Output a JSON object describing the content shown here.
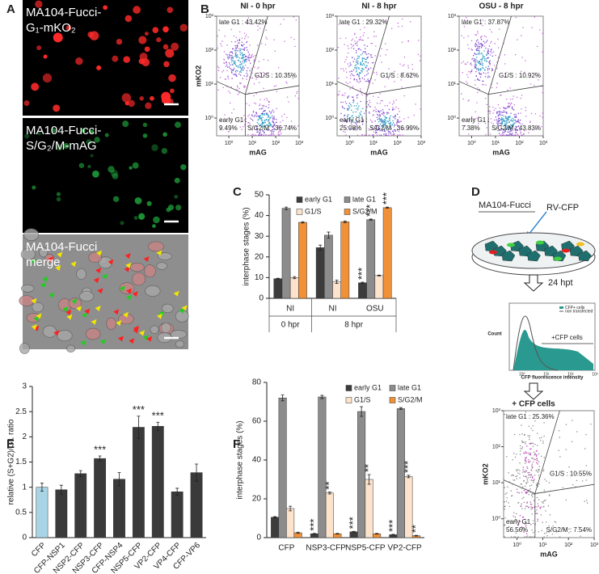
{
  "panel_letters": [
    "A",
    "B",
    "C",
    "D",
    "E",
    "F"
  ],
  "microscopy": [
    {
      "label": [
        "MA104-Fucci-",
        "G₁-mKO₂"
      ]
    },
    {
      "label": [
        "MA104-Fucci-",
        "S/G₂/M-mAG"
      ]
    },
    {
      "label": [
        "MA104-Fucci",
        "merge"
      ]
    }
  ],
  "flow_plots": [
    {
      "title": "NI - 0 hpr",
      "xlabel": "mAG",
      "ylabel": "mKO2",
      "log_scale": true,
      "xlim": [
        0.3,
        1000
      ],
      "ylim": [
        0.3,
        1000
      ],
      "xticks": [
        {
          "value": 1,
          "label": "10⁰"
        },
        {
          "value": 10,
          "label": "10¹"
        },
        {
          "value": 100,
          "label": "10²"
        },
        {
          "value": 1000,
          "label": "10³"
        }
      ],
      "yticks": [
        {
          "value": 1,
          "label": "10⁰"
        },
        {
          "value": 10,
          "label": "10¹"
        },
        {
          "value": 100,
          "label": "10²"
        },
        {
          "value": 1000,
          "label": "10³"
        }
      ],
      "gates": {
        "late_g1": "late G1 : 43.42%",
        "g1_s": "G1/S : 10.35%",
        "early_g1": [
          "early G1 :",
          "9.49%"
        ],
        "s_g2_m": "S/G2/M : 36.74%"
      }
    },
    {
      "title": "NI - 8 hpr",
      "xlabel": "mAG",
      "log_scale": true,
      "xlim": [
        0.3,
        1000
      ],
      "ylim": [
        0.3,
        1000
      ],
      "xticks": [
        {
          "value": 1,
          "label": "10⁰"
        },
        {
          "value": 10,
          "label": "10¹"
        },
        {
          "value": 100,
          "label": "10²"
        },
        {
          "value": 1000,
          "label": "10³"
        }
      ],
      "yticks": [
        {
          "value": 1,
          "label": "10⁰"
        },
        {
          "value": 10,
          "label": "10¹"
        },
        {
          "value": 100,
          "label": "10²"
        },
        {
          "value": 1000,
          "label": "10³"
        }
      ],
      "gates": {
        "late_g1": "late G1 : 29.32%",
        "g1_s": "G1/S : 8.62%",
        "early_g1": [
          "early G1 :",
          "25.08%"
        ],
        "s_g2_m": "S/G2/M : 36.99%"
      }
    },
    {
      "title": "OSU - 8 hpr",
      "xlabel": "mAG",
      "log_scale": true,
      "xlim": [
        0.3,
        1000
      ],
      "ylim": [
        0.3,
        1000
      ],
      "xticks": [
        {
          "value": 1,
          "label": "10⁰"
        },
        {
          "value": 10,
          "label": "10¹"
        },
        {
          "value": 100,
          "label": "10²"
        },
        {
          "value": 1000,
          "label": "10³"
        }
      ],
      "yticks": [
        {
          "value": 1,
          "label": "10⁰"
        },
        {
          "value": 10,
          "label": "10¹"
        },
        {
          "value": 100,
          "label": "10²"
        },
        {
          "value": 1000,
          "label": "10³"
        }
      ],
      "gates": {
        "late_g1": "late G1 : 37.87%",
        "g1_s": "G1/S : 10.92%",
        "early_g1": [
          "early G1 :",
          "7.38%"
        ],
        "s_g2_m": "S/G2/M : 43.83%"
      }
    }
  ],
  "diagram": {
    "cell_line": "MA104-Fucci",
    "virus": "RV-CFP",
    "time": "24 hpt",
    "histogram": {
      "ylabel": "Count",
      "xlabel": "CFP fluorescence intensity",
      "legend": [
        "CFP+ cells",
        "non transfected"
      ],
      "gate_label": "+CFP cells",
      "xticks": [
        {
          "value": 1,
          "label": "10⁰"
        },
        {
          "value": 10,
          "label": "10¹"
        },
        {
          "value": 100,
          "label": "10²"
        },
        {
          "value": 1000,
          "label": "10³"
        }
      ],
      "xlim": [
        0.3,
        1000
      ]
    },
    "sorted_label": "+ CFP cells",
    "flow_plot": {
      "xlabel": "mAG",
      "ylabel": "mKO2",
      "log_scale": true,
      "xlim": [
        0.3,
        1000
      ],
      "ylim": [
        0.3,
        1000
      ],
      "xticks": [
        {
          "value": 1,
          "label": "10⁰"
        },
        {
          "value": 10,
          "label": "10¹"
        },
        {
          "value": 100,
          "label": "10²"
        },
        {
          "value": 1000,
          "label": "10³"
        }
      ],
      "yticks": [
        {
          "value": 1,
          "label": "10⁰"
        },
        {
          "value": 10,
          "label": "10¹"
        },
        {
          "value": 100,
          "label": "10²"
        },
        {
          "value": 1000,
          "label": "10³"
        }
      ],
      "gates": {
        "late_g1": "late G1 : 25.36%",
        "g1_s": "G1/S : 10.55%",
        "early_g1": [
          "early G1 :",
          "56.56%"
        ],
        "s_g2_m": "S/G2/M : 7.54%"
      }
    }
  },
  "chart_data": [
    {
      "type": "bar",
      "ylabel": "interphase stages (%)",
      "categories": [
        "NI",
        "NI",
        "OSU"
      ],
      "group_labels": [
        "0 hpr",
        "8 hpr",
        null
      ],
      "ylim": [
        0,
        50
      ],
      "yticks": [
        0,
        10,
        20,
        30,
        40,
        50
      ],
      "series": [
        {
          "name": "early G1",
          "color": "#3c3c3c",
          "values": [
            9.5,
            24.5,
            7.5
          ],
          "errors": [
            0.2,
            1.2,
            0.3
          ],
          "significance": [
            null,
            null,
            "***"
          ]
        },
        {
          "name": "late G1",
          "color": "#8c8c8c",
          "values": [
            43.5,
            30.5,
            38
          ],
          "errors": [
            0.6,
            1.5,
            0.3
          ],
          "significance": [
            null,
            null,
            "***"
          ]
        },
        {
          "name": "G1/S",
          "color": "#fde3cc",
          "values": [
            10,
            8,
            11
          ],
          "errors": [
            0.5,
            0.8,
            0.2
          ],
          "significance": [
            null,
            null,
            null
          ]
        },
        {
          "name": "S/G2/M",
          "color": "#f0913a",
          "values": [
            36.7,
            37,
            43.8
          ],
          "errors": [
            0.3,
            0.4,
            0.3
          ],
          "significance": [
            null,
            null,
            "***"
          ]
        }
      ]
    },
    {
      "type": "bar",
      "ylabel": "relative (S+G2)/G1 ratio",
      "categories": [
        "CFP",
        "CFP-NSP1",
        "NSP2-CFP",
        "NSP3-CFP",
        "CFP-NSP4",
        "NSP5-CFP",
        "VP2-CFP",
        "VP4-CFP",
        "CFP-VP6"
      ],
      "values": [
        1.0,
        0.95,
        1.27,
        1.57,
        1.16,
        2.19,
        2.21,
        0.91,
        1.29
      ],
      "errors": [
        0.08,
        0.09,
        0.06,
        0.05,
        0.13,
        0.22,
        0.08,
        0.07,
        0.17
      ],
      "colors": [
        "#a9d4e6",
        "#3a3a3a",
        "#3a3a3a",
        "#3a3a3a",
        "#3a3a3a",
        "#3a3a3a",
        "#3a3a3a",
        "#3a3a3a",
        "#3a3a3a"
      ],
      "significance": [
        null,
        null,
        null,
        "***",
        null,
        "***",
        "***",
        null,
        null
      ],
      "ylim": [
        0,
        3
      ],
      "yticks": [
        0,
        0.5,
        1,
        1.5,
        2,
        2.5,
        3
      ]
    },
    {
      "type": "bar",
      "ylabel": "interphase stages (%)",
      "categories": [
        "CFP",
        "NSP3-CFP",
        "NSP5-CFP",
        "VP2-CFP"
      ],
      "ylim": [
        0,
        80
      ],
      "yticks": [
        0,
        20,
        40,
        60,
        80
      ],
      "series": [
        {
          "name": "early G1",
          "color": "#3c3c3c",
          "values": [
            10.5,
            2,
            3,
            1.5
          ],
          "errors": [
            0.3,
            0.2,
            0.2,
            0.2
          ],
          "significance": [
            null,
            "***",
            "***",
            "***"
          ]
        },
        {
          "name": "late G1",
          "color": "#8c8c8c",
          "values": [
            72,
            72.5,
            65,
            66.5
          ],
          "errors": [
            1.5,
            0.8,
            2.5,
            0.5
          ],
          "significance": [
            null,
            null,
            null,
            null
          ]
        },
        {
          "name": "G1/S",
          "color": "#fde3cc",
          "values": [
            15,
            23,
            30,
            31.5
          ],
          "errors": [
            1.2,
            0.5,
            2.5,
            0.6
          ],
          "significance": [
            null,
            "**",
            "**",
            "***"
          ]
        },
        {
          "name": "S/G2/M",
          "color": "#f0913a",
          "values": [
            2.5,
            2,
            2,
            1
          ],
          "errors": [
            0.3,
            0.2,
            0.2,
            0.2
          ],
          "significance": [
            null,
            null,
            null,
            "**"
          ]
        }
      ]
    }
  ]
}
